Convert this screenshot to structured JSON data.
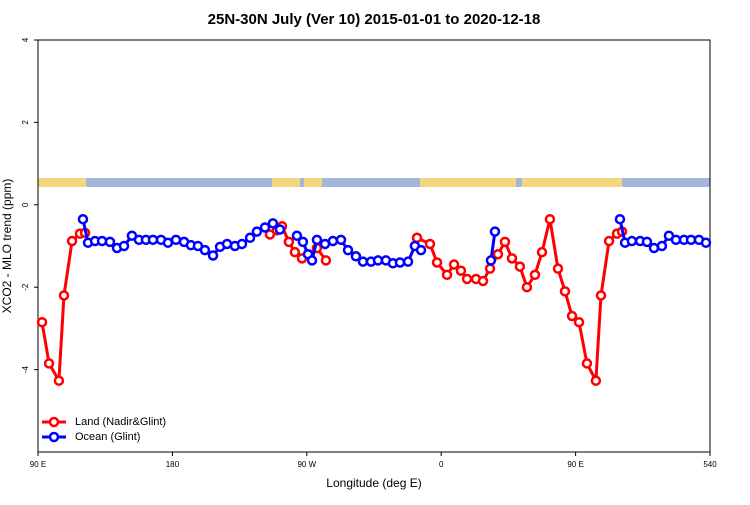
{
  "chart_data": {
    "type": "line",
    "title": "25N-30N July (Ver 10)   2015-01-01 to 2020-12-18",
    "xlabel": "Longitude (deg E)",
    "ylabel": "XCO2 - MLO trend (ppm)",
    "xlim": [
      90,
      540
    ],
    "xticks": [
      {
        "value": 90,
        "label": "90 E"
      },
      180,
      {
        "value": 270,
        "label": "90 W"
      },
      {
        "value": 360,
        "label": "0"
      },
      {
        "value": 450,
        "label": "90 E"
      },
      540
    ],
    "ylim": [
      -6,
      4
    ],
    "yticks": [
      4,
      2,
      0,
      -2,
      -4
    ],
    "legend": "bottomleft",
    "series": [
      {
        "name": "Land (Nadir&Glint)",
        "color": "#ff0000",
        "x": [
          92.7,
          97.4,
          104,
          107.4,
          112.8,
          118.1,
          121.5,
          null,
          245.3,
          250,
          253.4,
          258,
          262,
          266.8,
          276.8,
          282.8,
          null,
          343.8,
          352.5,
          357.2,
          363.9,
          368.6,
          373.2,
          377.3,
          383.3,
          388,
          392.7,
          398,
          402.7,
          407.4,
          412.7,
          417.4,
          422.8,
          427.5,
          432.8,
          438.2,
          442.9,
          447.6,
          452.3,
          457.6,
          463.6,
          467,
          472.4,
          477.7,
          481.1
        ],
        "values": [
          -2.85,
          -3.85,
          -4.27,
          -2.2,
          -0.88,
          -0.7,
          -0.68,
          null,
          -0.72,
          -0.62,
          -0.52,
          -0.9,
          -1.15,
          -1.3,
          -1.05,
          -1.35,
          null,
          -0.8,
          -0.95,
          -1.4,
          -1.7,
          -1.45,
          -1.6,
          -1.8,
          -1.8,
          -1.85,
          -1.55,
          -1.2,
          -0.9,
          -1.3,
          -1.5,
          -2.0,
          -1.7,
          -1.15,
          -0.35,
          -1.55,
          -2.1,
          -2.7,
          -2.85,
          -3.85,
          -4.27,
          -2.2,
          -0.88,
          -0.7,
          -0.65
        ]
      },
      {
        "name": "Ocean (Glint)",
        "color": "#0000ff",
        "x": [
          120.1,
          123.5,
          128.2,
          132.9,
          138.2,
          142.9,
          147.6,
          152.9,
          157.6,
          162.3,
          167,
          172.4,
          177,
          182.4,
          187.8,
          192.4,
          197.1,
          201.8,
          207.2,
          211.9,
          216.6,
          221.9,
          226.6,
          232,
          236.6,
          242,
          247.3,
          252,
          null,
          263.4,
          267.4,
          270.8,
          273.5,
          276.8,
          282.2,
          287.5,
          292.9,
          297.6,
          302.9,
          307.6,
          313,
          317.7,
          323,
          327.7,
          332.4,
          337.8,
          342.4,
          346.5,
          null,
          393.3,
          396,
          null,
          479.7,
          483.1,
          487.7,
          493.2,
          497.8,
          502.5,
          507.8,
          512.5,
          517.2,
          522.6,
          527.3,
          532.6,
          537.3
        ],
        "values": [
          -0.35,
          -0.92,
          -0.88,
          -0.88,
          -0.9,
          -1.05,
          -1.0,
          -0.75,
          -0.85,
          -0.85,
          -0.85,
          -0.85,
          -0.92,
          -0.85,
          -0.9,
          -0.98,
          -1.0,
          -1.1,
          -1.23,
          -1.02,
          -0.95,
          -1.0,
          -0.95,
          -0.8,
          -0.65,
          -0.55,
          -0.45,
          -0.6,
          null,
          -0.75,
          -0.9,
          -1.2,
          -1.35,
          -0.85,
          -0.95,
          -0.88,
          -0.85,
          -1.1,
          -1.25,
          -1.38,
          -1.38,
          -1.35,
          -1.35,
          -1.42,
          -1.4,
          -1.38,
          -1.0,
          -1.1,
          null,
          -1.35,
          -0.65,
          null,
          -0.35,
          -0.92,
          -0.88,
          -0.88,
          -0.9,
          -1.05,
          -1.0,
          -0.75,
          -0.85,
          -0.85,
          -0.85,
          -0.85,
          -0.92
        ]
      }
    ]
  }
}
